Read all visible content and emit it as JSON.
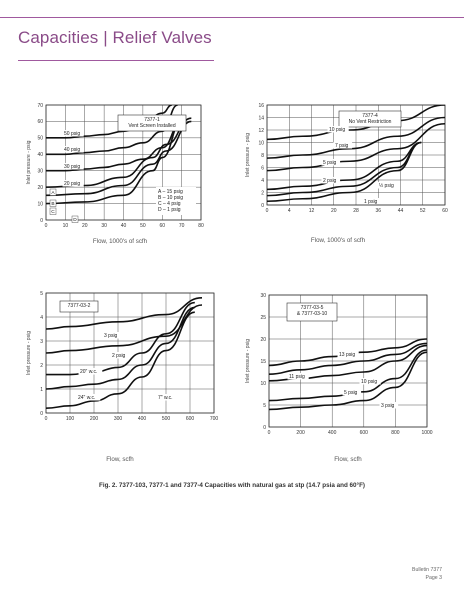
{
  "page": {
    "title": "Capacities | Relief Valves",
    "caption": "Fig. 2. 7377-103, 7377-1 and 7377-4 Capacities with natural gas at stp (14.7 psia and 60°F)",
    "footer_line1": "Bulletin 7377",
    "footer_line2": "Page 3",
    "accent_color": "#a0599e"
  },
  "chart_data": [
    {
      "type": "line",
      "box_lines": [
        "7377-1",
        "Vent Screen Installed"
      ],
      "xlabel": "Flow, 1000's of scfh",
      "ylabel": "Inlet pressure - psig",
      "xlim": [
        0,
        80
      ],
      "ylim": [
        0,
        70
      ],
      "xticks": [
        "0",
        "10",
        "20",
        "30",
        "40",
        "50",
        "60",
        "70",
        "80"
      ],
      "yticks": [
        "0",
        "10",
        "20",
        "30",
        "40",
        "50",
        "60",
        "70"
      ],
      "legend_lines": [
        "A –   15 psig",
        "B –   10 psig",
        "C –    4 psig",
        "D –    1 psig"
      ],
      "markers": [
        "A",
        "B",
        "C",
        "D"
      ],
      "series": [
        {
          "name": "",
          "x": [
            0,
            20,
            40,
            55,
            60,
            70
          ],
          "y": [
            10,
            11,
            15,
            30,
            38,
            60
          ]
        },
        {
          "name": "",
          "x": [
            0,
            20,
            40,
            55,
            62,
            75
          ],
          "y": [
            15,
            16,
            21,
            34,
            42,
            60
          ]
        },
        {
          "name": "",
          "x": [
            0,
            20,
            40,
            55,
            62,
            75
          ],
          "y": [
            20,
            21,
            26,
            38,
            46,
            62
          ]
        },
        {
          "name": "",
          "x": [
            0,
            10,
            20,
            30,
            40,
            50,
            60,
            70
          ],
          "y": [
            30,
            30,
            31,
            32,
            34,
            37,
            44,
            60
          ]
        },
        {
          "name": "",
          "x": [
            0,
            10,
            20,
            30,
            40,
            50,
            60,
            68
          ],
          "y": [
            40,
            40,
            41,
            42,
            44,
            47,
            54,
            70
          ]
        },
        {
          "name": "",
          "x": [
            0,
            10,
            20,
            30,
            40,
            50,
            60,
            65
          ],
          "y": [
            50,
            50,
            51,
            52,
            54,
            58,
            65,
            70
          ]
        }
      ],
      "labels": [
        "50 psig",
        "40 psig",
        "30 psig",
        "20 psig"
      ]
    },
    {
      "type": "line",
      "box_lines": [
        "7377-4",
        "No Vent Restriction"
      ],
      "xlabel": "Flow, 1000's of scfh",
      "ylabel": "Inlet pressure - psig",
      "xlim": [
        0,
        60
      ],
      "ylim": [
        0,
        16
      ],
      "xticks": [
        "0",
        "4",
        "12",
        "20",
        "28",
        "36",
        "44",
        "52",
        "60"
      ],
      "yticks": [
        "0",
        "2",
        "4",
        "6",
        "8",
        "10",
        "12",
        "14",
        "16"
      ],
      "labels": [
        "10 psig",
        "7 psig",
        "5 psig",
        "2 psig",
        "½ psig",
        "1 psig"
      ],
      "series": [
        {
          "name": "",
          "x": [
            0,
            12,
            28,
            44,
            60
          ],
          "y": [
            10.5,
            11,
            12,
            13.5,
            16
          ]
        },
        {
          "name": "",
          "x": [
            0,
            12,
            28,
            44,
            60
          ],
          "y": [
            7.5,
            8,
            9,
            11,
            14
          ]
        },
        {
          "name": "",
          "x": [
            0,
            12,
            28,
            44,
            60
          ],
          "y": [
            5.5,
            6,
            7,
            9,
            13
          ]
        },
        {
          "name": "",
          "x": [
            0,
            12,
            28,
            44,
            52
          ],
          "y": [
            2.5,
            3,
            4,
            7,
            10
          ]
        },
        {
          "name": "",
          "x": [
            0,
            12,
            28,
            44,
            52
          ],
          "y": [
            1.5,
            2,
            3,
            6,
            10
          ]
        },
        {
          "name": "",
          "x": [
            0,
            12,
            28,
            44,
            52
          ],
          "y": [
            0.6,
            1,
            2,
            5.5,
            10
          ]
        }
      ]
    },
    {
      "type": "line",
      "box_lines": [
        "7377-03-2"
      ],
      "xlabel": "Flow, scfh",
      "ylabel": "Inlet pressure - psig",
      "xlim": [
        0,
        700
      ],
      "ylim": [
        0,
        5
      ],
      "xticks": [
        "0",
        "100",
        "200",
        "300",
        "400",
        "500",
        "600",
        "700"
      ],
      "yticks": [
        "0",
        "1",
        "2",
        "3",
        "4",
        "5"
      ],
      "labels": [
        "3 psig",
        "2 psig",
        "20\" w.c.",
        "24\" w.c.",
        "7\" w.c."
      ],
      "series": [
        {
          "name": "",
          "x": [
            0,
            100,
            300,
            500,
            650
          ],
          "y": [
            3.5,
            3.6,
            3.8,
            4.1,
            4.8
          ]
        },
        {
          "name": "",
          "x": [
            0,
            100,
            300,
            500,
            650
          ],
          "y": [
            2.5,
            2.6,
            2.8,
            3.2,
            4.5
          ]
        },
        {
          "name": "",
          "x": [
            0,
            100,
            200,
            300,
            400,
            500,
            620
          ],
          "y": [
            1.6,
            1.6,
            1.7,
            1.9,
            2.5,
            3.3,
            4.6
          ]
        },
        {
          "name": "",
          "x": [
            0,
            100,
            200,
            300,
            400,
            500,
            620
          ],
          "y": [
            1.0,
            1.1,
            1.2,
            1.4,
            2.0,
            2.9,
            4.4
          ]
        },
        {
          "name": "",
          "x": [
            0,
            100,
            200,
            300,
            400,
            500,
            620
          ],
          "y": [
            0.2,
            0.3,
            0.5,
            0.8,
            1.5,
            2.6,
            4.2
          ]
        }
      ]
    },
    {
      "type": "line",
      "box_lines": [
        "7377-03-5",
        "& 7377-03-10"
      ],
      "xlabel": "Flow, scfh",
      "ylabel": "Inlet pressure - psig",
      "xlim": [
        0,
        1000
      ],
      "ylim": [
        0,
        30
      ],
      "xticks": [
        "0",
        "200",
        "400",
        "600",
        "800",
        "1000"
      ],
      "yticks": [
        "0",
        "5",
        "10",
        "15",
        "20",
        "25",
        "30"
      ],
      "labels": [
        "13 psig",
        "11 psig",
        "10 psig",
        "5 psig",
        "3 psig"
      ],
      "series": [
        {
          "name": "",
          "x": [
            0,
            200,
            400,
            600,
            800,
            1000
          ],
          "y": [
            14,
            15,
            16,
            17,
            18,
            20
          ]
        },
        {
          "name": "",
          "x": [
            0,
            200,
            400,
            600,
            800,
            1000
          ],
          "y": [
            12,
            13,
            14,
            15,
            16.5,
            19
          ]
        },
        {
          "name": "",
          "x": [
            0,
            200,
            400,
            600,
            800,
            1000
          ],
          "y": [
            10.5,
            11,
            11.7,
            12.5,
            15,
            18.5
          ]
        },
        {
          "name": "",
          "x": [
            0,
            200,
            400,
            600,
            800,
            1000
          ],
          "y": [
            6,
            6.5,
            7,
            8,
            11,
            17.5
          ]
        },
        {
          "name": "",
          "x": [
            0,
            200,
            400,
            600,
            800,
            1000
          ],
          "y": [
            4,
            4.5,
            5,
            6,
            9,
            17
          ]
        }
      ]
    }
  ]
}
